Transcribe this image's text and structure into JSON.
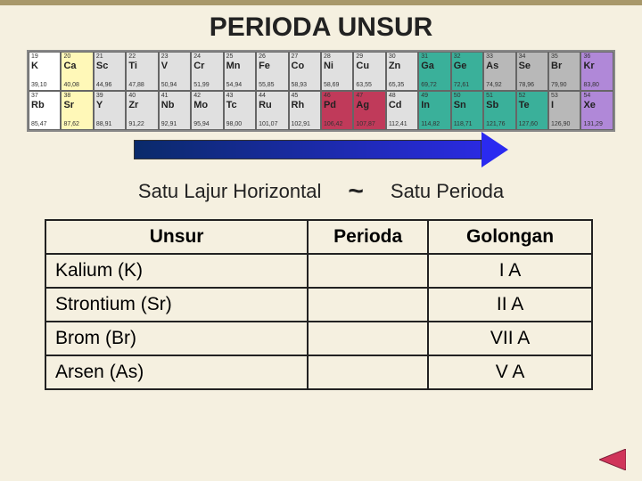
{
  "title": "PERIODA UNSUR",
  "colors": {
    "background": "#f5f0e0",
    "top_bar": "#a8986a",
    "arrow_start": "#0a2a6a",
    "arrow_end": "#2a2af0",
    "group1": "#ffffff",
    "group2": "#fff8b8",
    "d_block": "#e0e0e0",
    "d_highlight": "#c03a5a",
    "p_green": "#3ab09a",
    "p_gray": "#b8b8b8",
    "p_purple": "#b088d8",
    "nav_fill": "#d0355a"
  },
  "ptable": {
    "rows": [
      [
        {
          "num": "19",
          "sym": "K",
          "mass": "39,10",
          "bg": "group1"
        },
        {
          "num": "20",
          "sym": "Ca",
          "mass": "40,08",
          "bg": "group2"
        },
        {
          "num": "21",
          "sym": "Sc",
          "mass": "44,96",
          "bg": "d_block"
        },
        {
          "num": "22",
          "sym": "Ti",
          "mass": "47,88",
          "bg": "d_block"
        },
        {
          "num": "23",
          "sym": "V",
          "mass": "50,94",
          "bg": "d_block"
        },
        {
          "num": "24",
          "sym": "Cr",
          "mass": "51,99",
          "bg": "d_block"
        },
        {
          "num": "25",
          "sym": "Mn",
          "mass": "54,94",
          "bg": "d_block"
        },
        {
          "num": "26",
          "sym": "Fe",
          "mass": "55,85",
          "bg": "d_block"
        },
        {
          "num": "27",
          "sym": "Co",
          "mass": "58,93",
          "bg": "d_block"
        },
        {
          "num": "28",
          "sym": "Ni",
          "mass": "58,69",
          "bg": "d_block"
        },
        {
          "num": "29",
          "sym": "Cu",
          "mass": "63,55",
          "bg": "d_block"
        },
        {
          "num": "30",
          "sym": "Zn",
          "mass": "65,35",
          "bg": "d_block"
        },
        {
          "num": "31",
          "sym": "Ga",
          "mass": "69,72",
          "bg": "p_green"
        },
        {
          "num": "32",
          "sym": "Ge",
          "mass": "72,61",
          "bg": "p_green"
        },
        {
          "num": "33",
          "sym": "As",
          "mass": "74,92",
          "bg": "p_gray"
        },
        {
          "num": "34",
          "sym": "Se",
          "mass": "78,96",
          "bg": "p_gray"
        },
        {
          "num": "35",
          "sym": "Br",
          "mass": "79,90",
          "bg": "p_gray"
        },
        {
          "num": "36",
          "sym": "Kr",
          "mass": "83,80",
          "bg": "p_purple"
        }
      ],
      [
        {
          "num": "37",
          "sym": "Rb",
          "mass": "85,47",
          "bg": "group1"
        },
        {
          "num": "38",
          "sym": "Sr",
          "mass": "87,62",
          "bg": "group2"
        },
        {
          "num": "39",
          "sym": "Y",
          "mass": "88,91",
          "bg": "d_block"
        },
        {
          "num": "40",
          "sym": "Zr",
          "mass": "91,22",
          "bg": "d_block"
        },
        {
          "num": "41",
          "sym": "Nb",
          "mass": "92,91",
          "bg": "d_block"
        },
        {
          "num": "42",
          "sym": "Mo",
          "mass": "95,94",
          "bg": "d_block"
        },
        {
          "num": "43",
          "sym": "Tc",
          "mass": "98,00",
          "bg": "d_block"
        },
        {
          "num": "44",
          "sym": "Ru",
          "mass": "101,07",
          "bg": "d_block"
        },
        {
          "num": "45",
          "sym": "Rh",
          "mass": "102,91",
          "bg": "d_block"
        },
        {
          "num": "46",
          "sym": "Pd",
          "mass": "106,42",
          "bg": "d_highlight"
        },
        {
          "num": "47",
          "sym": "Ag",
          "mass": "107,87",
          "bg": "d_highlight"
        },
        {
          "num": "48",
          "sym": "Cd",
          "mass": "112,41",
          "bg": "d_block"
        },
        {
          "num": "49",
          "sym": "In",
          "mass": "114,82",
          "bg": "p_green"
        },
        {
          "num": "50",
          "sym": "Sn",
          "mass": "118,71",
          "bg": "p_green"
        },
        {
          "num": "51",
          "sym": "Sb",
          "mass": "121,76",
          "bg": "p_green"
        },
        {
          "num": "52",
          "sym": "Te",
          "mass": "127,60",
          "bg": "p_green"
        },
        {
          "num": "53",
          "sym": "I",
          "mass": "126,90",
          "bg": "p_gray"
        },
        {
          "num": "54",
          "sym": "Xe",
          "mass": "131,29",
          "bg": "p_purple"
        }
      ]
    ]
  },
  "midline": {
    "left": "Satu Lajur Horizontal",
    "tilde": "~",
    "right": "Satu Perioda"
  },
  "table": {
    "headers": [
      "Unsur",
      "Perioda",
      "Golongan"
    ],
    "rows": [
      {
        "unsur": "Kalium  (K)",
        "perioda": "",
        "golongan": "I  A"
      },
      {
        "unsur": "Strontium  (Sr)",
        "perioda": "",
        "golongan": "II  A"
      },
      {
        "unsur": "Brom (Br)",
        "perioda": "",
        "golongan": "VII A"
      },
      {
        "unsur": "Arsen (As)",
        "perioda": "",
        "golongan": "V A"
      }
    ]
  },
  "nav": {
    "label": "previous-slide"
  }
}
